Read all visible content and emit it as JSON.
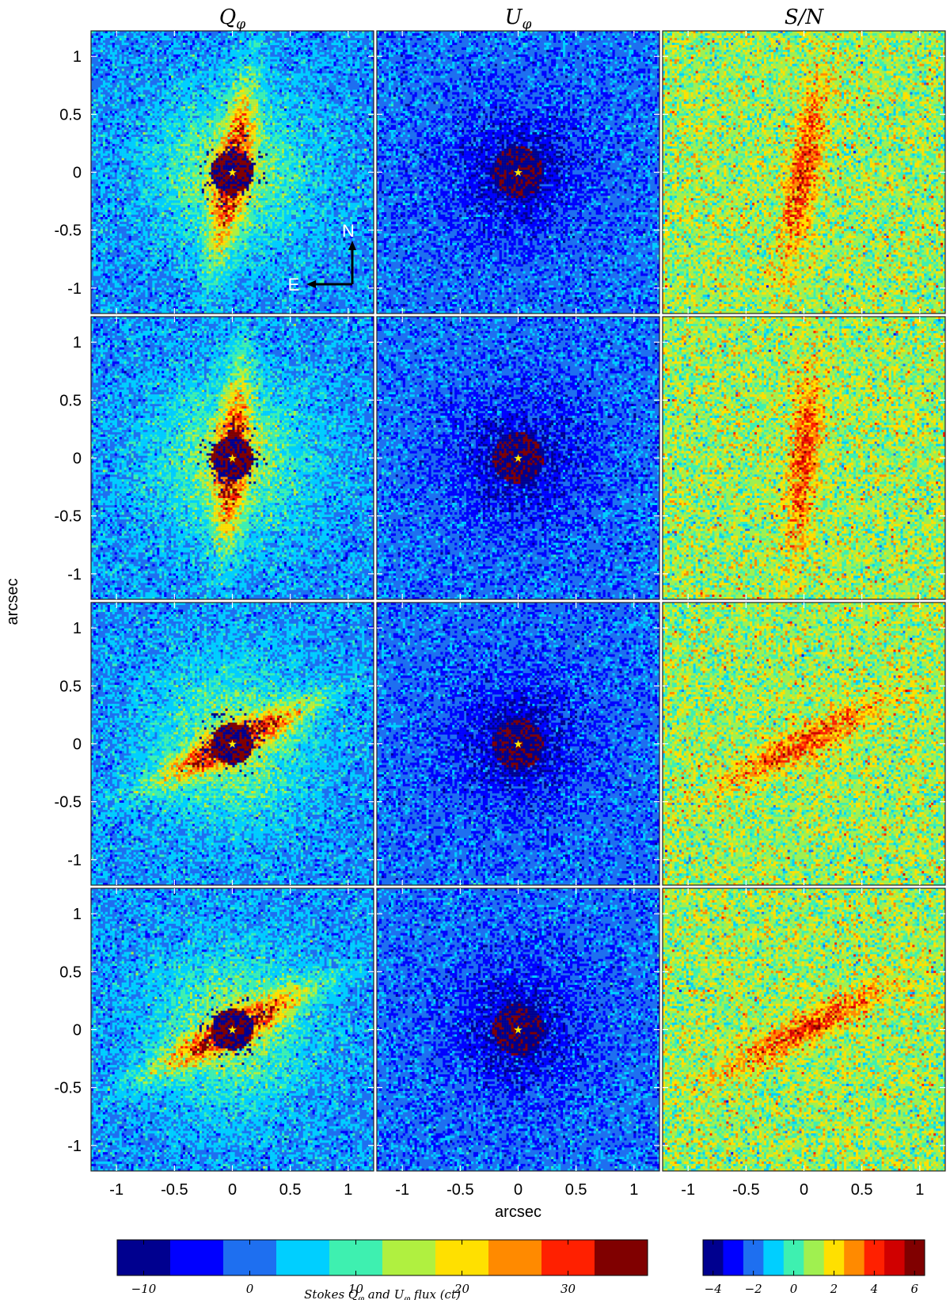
{
  "chart_data": {
    "type": "heatmap",
    "columns": [
      {
        "title_main": "Q",
        "title_sub": "φ"
      },
      {
        "title_main": "U",
        "title_sub": "φ"
      },
      {
        "title_main": "S/N",
        "title_sub": ""
      }
    ],
    "rows": 4,
    "xlabel": "arcsec",
    "ylabel": "arcsec",
    "xlim": [
      -1.22,
      1.22
    ],
    "ylim": [
      -1.22,
      1.22
    ],
    "xticks": [
      -1,
      -0.5,
      0,
      0.5,
      1
    ],
    "yticks": [
      1,
      0.5,
      0,
      -0.5,
      -1
    ],
    "xtick_labels": [
      "-1",
      "-0.5",
      "0",
      "0.5",
      "1"
    ],
    "ytick_labels": [
      "1",
      "0.5",
      "0",
      "-0.5",
      "-1"
    ],
    "compass": {
      "north_label": "N",
      "east_label": "E"
    },
    "disk_position_angles_deg": [
      10,
      5,
      63,
      62
    ],
    "colormap": "jet",
    "colorbars": [
      {
        "label_prefix": "Stokes ",
        "label_q": "Q",
        "label_and": " and ",
        "label_u": "U",
        "label_suffix": " flux (ct)",
        "sub": "φ",
        "range": [
          -12.5,
          37.5
        ],
        "bins": 10,
        "ticks": [
          -10,
          0,
          10,
          20,
          30
        ],
        "tick_labels": [
          "−10",
          "0",
          "10",
          "20",
          "30"
        ]
      },
      {
        "label": "",
        "range": [
          -4.5,
          6.5
        ],
        "bins": 11,
        "ticks": [
          -4,
          -2,
          0,
          2,
          4,
          6
        ],
        "tick_labels": [
          "−4",
          "−2",
          "0",
          "2",
          "4",
          "6"
        ]
      }
    ],
    "colors": [
      "#00008f",
      "#0000ff",
      "#1e6ff0",
      "#00cfff",
      "#3ef0b0",
      "#b0f040",
      "#ffe000",
      "#ff8a00",
      "#ff2000",
      "#800000"
    ],
    "sn_colors": [
      "#00008f",
      "#0000ff",
      "#1e6ff0",
      "#00cfff",
      "#3ef0b0",
      "#a0f050",
      "#ffe000",
      "#ff8a00",
      "#ff2000",
      "#d00000",
      "#800000"
    ]
  }
}
